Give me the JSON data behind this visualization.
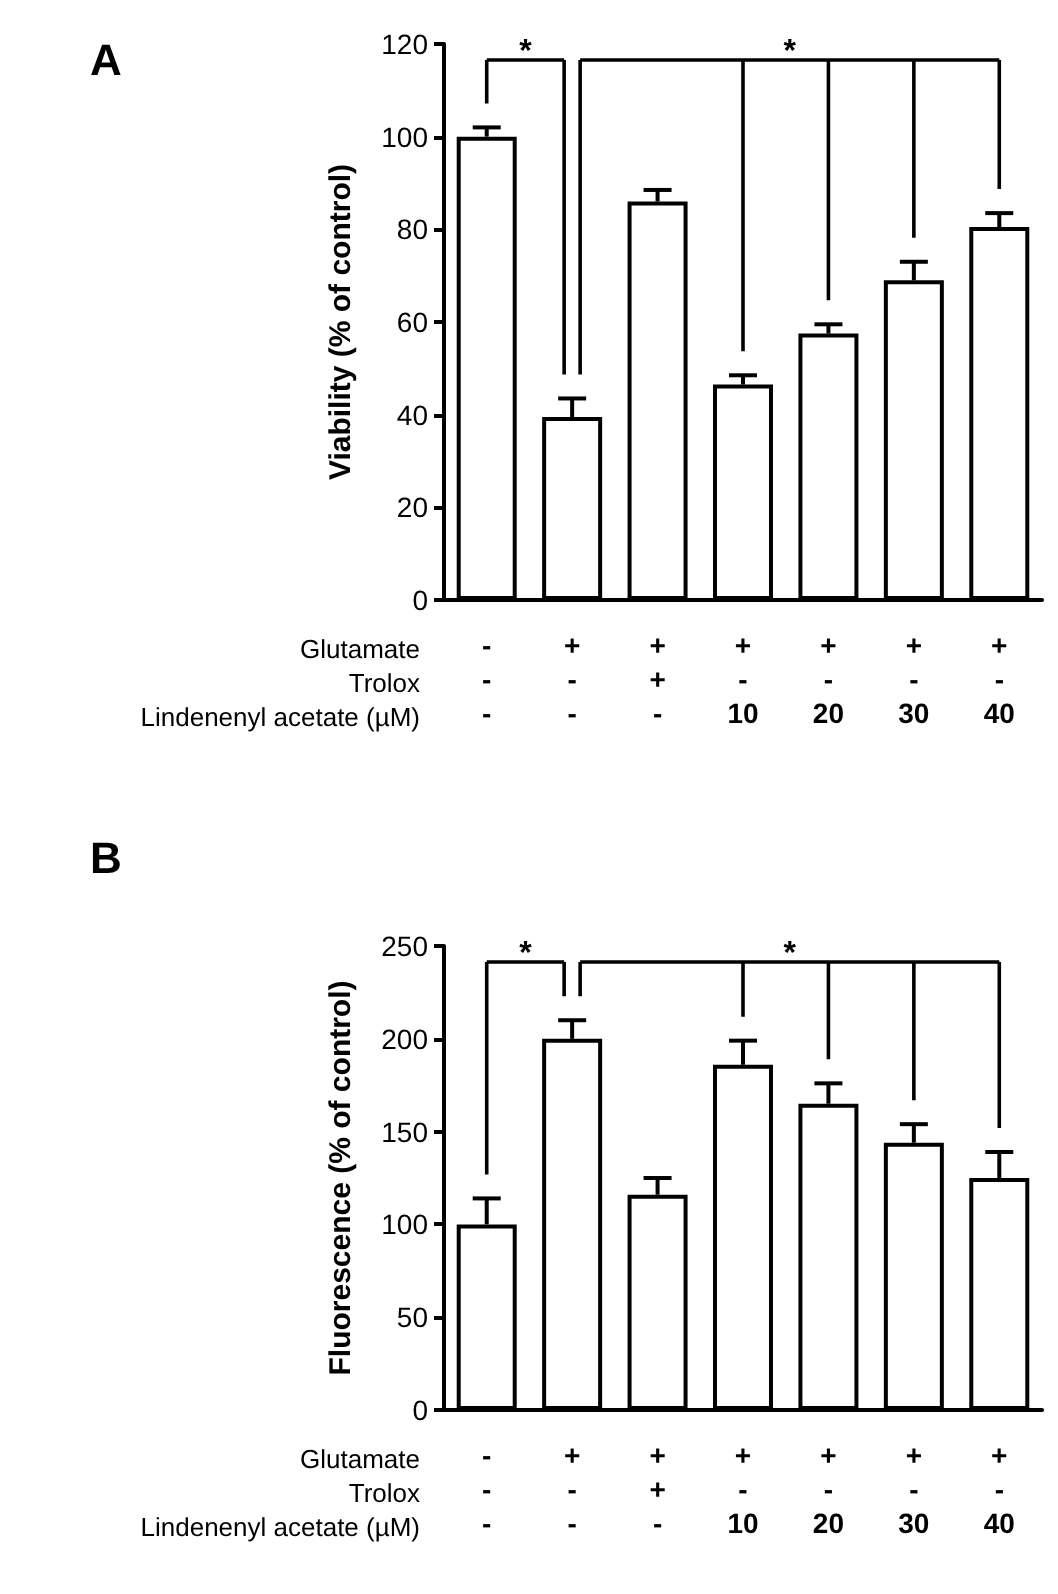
{
  "chart_data": [
    {
      "type": "bar",
      "title": "A",
      "ylabel": "Viability (% of control)",
      "categories": [
        "-\n-\n-",
        "+\n-\n-",
        "+\n+\n-",
        "+\n-\n10",
        "+\n-\n20",
        "+\n-\n30",
        "+\n-\n40"
      ],
      "values": [
        100,
        39.5,
        86,
        46.5,
        57.5,
        69,
        80.5
      ],
      "errors": [
        2,
        4,
        2.5,
        2,
        2,
        4,
        3
      ],
      "color": "#ffffff",
      "ylim": [
        0,
        120
      ],
      "yticks": [
        0,
        20,
        40,
        60,
        80,
        100,
        120
      ],
      "annotations": [
        "Glutamate",
        "Trolox",
        "Lindenenyl acetate (µM)",
        "*",
        "*"
      ]
    },
    {
      "type": "bar",
      "title": "B",
      "ylabel": "Fluorescence (% of control)",
      "categories": [
        "-\n-\n-",
        "+\n-\n-",
        "+\n+\n-",
        "+\n-\n10",
        "+\n-\n20",
        "+\n-\n30",
        "+\n-\n40"
      ],
      "values": [
        100,
        200,
        116,
        186,
        165,
        144,
        125
      ],
      "errors": [
        14,
        10,
        9,
        13,
        11,
        10,
        14
      ],
      "color": "#ffffff",
      "ylim": [
        0,
        250
      ],
      "yticks": [
        0,
        50,
        100,
        150,
        200,
        250
      ],
      "annotations": [
        "Glutamate",
        "Trolox",
        "Lindenenyl acetate (µM)",
        "*",
        "*"
      ]
    }
  ]
}
